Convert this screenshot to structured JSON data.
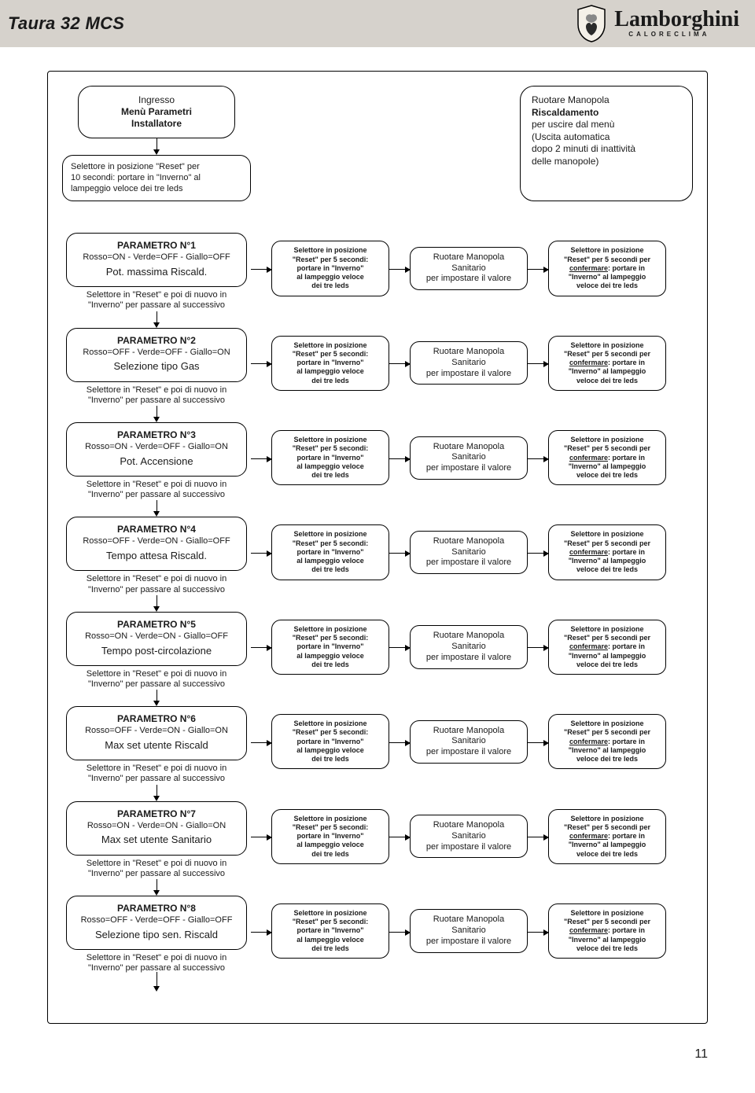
{
  "header": {
    "title": "Taura 32 MCS",
    "brand_name": "Lamborghini",
    "brand_sub": "CALORECLIMA"
  },
  "colors": {
    "header_bg": "#d6d2cc",
    "text": "#1a1a1a",
    "border": "#000000",
    "page_bg": "#ffffff"
  },
  "start": {
    "line1": "Ingresso",
    "line2": "Menù Parametri",
    "line3": "Installatore"
  },
  "entry": {
    "l1": "Selettore in posizione \"Reset\" per",
    "l2": "10 secondi: portare in \"Inverno\" al",
    "l3": "lampeggio veloce dei tre leds"
  },
  "exit": {
    "l1": "Ruotare Manopola",
    "l2": "Riscaldamento",
    "l3": "per uscire dal menù",
    "l4": "(Uscita automatica",
    "l5": "dopo 2 minuti di inattività",
    "l6": "delle manopole)"
  },
  "step_reset": {
    "l1": "Selettore in posizione",
    "l2": "\"Reset\" per 5 secondi:",
    "l3": "portare in \"Inverno\"",
    "l4": "al lampeggio veloce",
    "l5": "dei tre leds"
  },
  "step_rotate": {
    "l1": "Ruotare Manopola",
    "l2": "Sanitario",
    "l3": "per impostare il valore"
  },
  "step_confirm": {
    "l1": "Selettore in posizione",
    "l2": "\"Reset\" per 5 secondi per",
    "l3a": "confermare",
    "l3b": ": portare in",
    "l4": "\"Inverno\" al lampeggio",
    "l5": "veloce dei tre leds"
  },
  "next": {
    "l1": "Selettore in \"Reset\" e poi di nuovo in",
    "l2": "\"Inverno\" per passare al  successivo"
  },
  "params": [
    {
      "title": "PARAMETRO N°1",
      "leds": "Rosso=ON - Verde=OFF - Giallo=OFF",
      "desc": "Pot. massima Riscald."
    },
    {
      "title": "PARAMETRO N°2",
      "leds": "Rosso=OFF - Verde=OFF - Giallo=ON",
      "desc": "Selezione tipo Gas"
    },
    {
      "title": "PARAMETRO N°3",
      "leds": "Rosso=ON - Verde=OFF - Giallo=ON",
      "desc": "Pot. Accensione"
    },
    {
      "title": "PARAMETRO N°4",
      "leds": "Rosso=OFF - Verde=ON - Giallo=OFF",
      "desc": "Tempo attesa Riscald."
    },
    {
      "title": "PARAMETRO N°5",
      "leds": "Rosso=ON - Verde=ON - Giallo=OFF",
      "desc": "Tempo post-circolazione"
    },
    {
      "title": "PARAMETRO N°6",
      "leds": "Rosso=OFF - Verde=ON - Giallo=ON",
      "desc": "Max set utente Riscald"
    },
    {
      "title": "PARAMETRO N°7",
      "leds": "Rosso=ON - Verde=ON - Giallo=ON",
      "desc": "Max set utente Sanitario"
    },
    {
      "title": "PARAMETRO N°8",
      "leds": "Rosso=OFF - Verde=OFF - Giallo=OFF",
      "desc": "Selezione tipo sen. Riscald"
    }
  ],
  "page_number": "11"
}
